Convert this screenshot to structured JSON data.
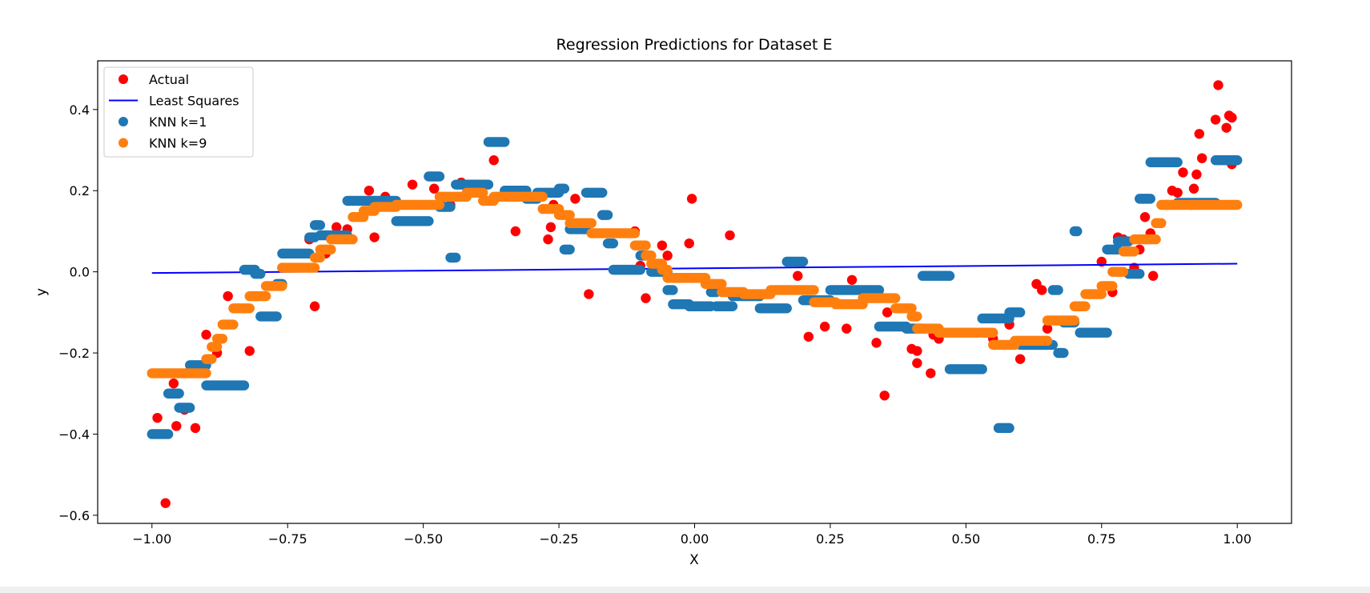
{
  "chart_data": {
    "type": "scatter",
    "title": "Regression Predictions for Dataset E",
    "xlabel": "X",
    "ylabel": "y",
    "xlim": [
      -1.1,
      1.1
    ],
    "ylim": [
      -0.62,
      0.52
    ],
    "xticks": [
      -1.0,
      -0.75,
      -0.5,
      -0.25,
      0.0,
      0.25,
      0.5,
      0.75,
      1.0
    ],
    "xtick_labels": [
      "−1.00",
      "−0.75",
      "−0.50",
      "−0.25",
      "0.00",
      "0.25",
      "0.50",
      "0.75",
      "1.00"
    ],
    "yticks": [
      -0.6,
      -0.4,
      -0.2,
      0.0,
      0.2,
      0.4
    ],
    "ytick_labels": [
      "−0.6",
      "−0.4",
      "−0.2",
      "0.0",
      "0.2",
      "0.4"
    ],
    "grid": false,
    "legend_position": "top-left",
    "series": [
      {
        "name": "Actual",
        "kind": "scatter",
        "color": "#ff0000",
        "points": [
          [
            -0.99,
            -0.36
          ],
          [
            -0.975,
            -0.57
          ],
          [
            -0.96,
            -0.275
          ],
          [
            -0.955,
            -0.38
          ],
          [
            -0.94,
            -0.34
          ],
          [
            -0.93,
            -0.25
          ],
          [
            -0.92,
            -0.385
          ],
          [
            -0.9,
            -0.155
          ],
          [
            -0.88,
            -0.2
          ],
          [
            -0.86,
            -0.06
          ],
          [
            -0.82,
            -0.195
          ],
          [
            -0.76,
            0.01
          ],
          [
            -0.71,
            0.08
          ],
          [
            -0.7,
            -0.085
          ],
          [
            -0.68,
            0.045
          ],
          [
            -0.66,
            0.11
          ],
          [
            -0.64,
            0.105
          ],
          [
            -0.6,
            0.2
          ],
          [
            -0.59,
            0.085
          ],
          [
            -0.57,
            0.185
          ],
          [
            -0.52,
            0.215
          ],
          [
            -0.48,
            0.205
          ],
          [
            -0.47,
            0.17
          ],
          [
            -0.43,
            0.22
          ],
          [
            -0.45,
            0.165
          ],
          [
            -0.37,
            0.275
          ],
          [
            -0.33,
            0.1
          ],
          [
            -0.265,
            0.11
          ],
          [
            -0.26,
            0.165
          ],
          [
            -0.27,
            0.08
          ],
          [
            -0.22,
            0.18
          ],
          [
            -0.195,
            -0.055
          ],
          [
            -0.17,
            0.14
          ],
          [
            -0.11,
            0.1
          ],
          [
            -0.1,
            0.015
          ],
          [
            -0.09,
            -0.065
          ],
          [
            -0.06,
            0.065
          ],
          [
            -0.05,
            0.04
          ],
          [
            -0.01,
            0.07
          ],
          [
            -0.005,
            0.18
          ],
          [
            0.065,
            0.09
          ],
          [
            0.19,
            -0.01
          ],
          [
            0.21,
            -0.16
          ],
          [
            0.24,
            -0.135
          ],
          [
            0.28,
            -0.14
          ],
          [
            0.29,
            -0.02
          ],
          [
            0.335,
            -0.175
          ],
          [
            0.35,
            -0.305
          ],
          [
            0.355,
            -0.1
          ],
          [
            0.4,
            -0.19
          ],
          [
            0.41,
            -0.195
          ],
          [
            0.41,
            -0.225
          ],
          [
            0.435,
            -0.25
          ],
          [
            0.44,
            -0.155
          ],
          [
            0.45,
            -0.165
          ],
          [
            0.55,
            -0.165
          ],
          [
            0.58,
            -0.13
          ],
          [
            0.6,
            -0.215
          ],
          [
            0.63,
            -0.03
          ],
          [
            0.64,
            -0.045
          ],
          [
            0.65,
            -0.14
          ],
          [
            0.75,
            0.025
          ],
          [
            0.77,
            -0.05
          ],
          [
            0.78,
            0.085
          ],
          [
            0.79,
            0.08
          ],
          [
            0.81,
            0.01
          ],
          [
            0.82,
            0.055
          ],
          [
            0.83,
            0.135
          ],
          [
            0.84,
            0.095
          ],
          [
            0.845,
            -0.01
          ],
          [
            0.87,
            0.165
          ],
          [
            0.88,
            0.2
          ],
          [
            0.89,
            0.195
          ],
          [
            0.9,
            0.245
          ],
          [
            0.915,
            0.165
          ],
          [
            0.92,
            0.205
          ],
          [
            0.925,
            0.24
          ],
          [
            0.93,
            0.34
          ],
          [
            0.935,
            0.28
          ],
          [
            0.96,
            0.375
          ],
          [
            0.965,
            0.46
          ],
          [
            0.98,
            0.355
          ],
          [
            0.985,
            0.385
          ],
          [
            0.99,
            0.265
          ],
          [
            0.99,
            0.38
          ]
        ]
      },
      {
        "name": "Least Squares",
        "kind": "line",
        "color": "#0000ff",
        "x": [
          -1.0,
          1.0
        ],
        "y": [
          -0.003,
          0.02
        ]
      },
      {
        "name": "KNN k=1",
        "kind": "scatter",
        "color": "#1f77b4",
        "steps": [
          [
            -1.0,
            -0.97,
            -0.4
          ],
          [
            -0.97,
            -0.95,
            -0.3
          ],
          [
            -0.95,
            -0.93,
            -0.335
          ],
          [
            -0.93,
            -0.9,
            -0.23
          ],
          [
            -0.9,
            -0.83,
            -0.28
          ],
          [
            -0.83,
            -0.81,
            0.005
          ],
          [
            -0.81,
            -0.8,
            -0.005
          ],
          [
            -0.8,
            -0.77,
            -0.11
          ],
          [
            -0.77,
            -0.76,
            -0.03
          ],
          [
            -0.76,
            -0.71,
            0.045
          ],
          [
            -0.71,
            -0.7,
            0.085
          ],
          [
            -0.7,
            -0.69,
            0.115
          ],
          [
            -0.69,
            -0.64,
            0.09
          ],
          [
            -0.64,
            -0.55,
            0.175
          ],
          [
            -0.55,
            -0.49,
            0.125
          ],
          [
            -0.49,
            -0.47,
            0.235
          ],
          [
            -0.47,
            -0.45,
            0.16
          ],
          [
            -0.45,
            -0.44,
            0.035
          ],
          [
            -0.44,
            -0.38,
            0.215
          ],
          [
            -0.38,
            -0.35,
            0.32
          ],
          [
            -0.35,
            -0.31,
            0.2
          ],
          [
            -0.31,
            -0.29,
            0.18
          ],
          [
            -0.29,
            -0.25,
            0.195
          ],
          [
            -0.25,
            -0.24,
            0.205
          ],
          [
            -0.24,
            -0.23,
            0.055
          ],
          [
            -0.23,
            -0.2,
            0.105
          ],
          [
            -0.2,
            -0.17,
            0.195
          ],
          [
            -0.17,
            -0.16,
            0.14
          ],
          [
            -0.16,
            -0.15,
            0.07
          ],
          [
            -0.15,
            -0.1,
            0.005
          ],
          [
            -0.1,
            -0.08,
            0.04
          ],
          [
            -0.08,
            -0.05,
            0.0
          ],
          [
            -0.05,
            -0.04,
            -0.045
          ],
          [
            -0.04,
            -0.01,
            -0.08
          ],
          [
            -0.01,
            0.03,
            -0.085
          ],
          [
            0.03,
            0.04,
            -0.05
          ],
          [
            0.04,
            0.07,
            -0.085
          ],
          [
            0.07,
            0.12,
            -0.06
          ],
          [
            0.12,
            0.17,
            -0.09
          ],
          [
            0.17,
            0.2,
            0.025
          ],
          [
            0.2,
            0.25,
            -0.07
          ],
          [
            0.25,
            0.34,
            -0.045
          ],
          [
            0.34,
            0.39,
            -0.135
          ],
          [
            0.39,
            0.42,
            -0.14
          ],
          [
            0.42,
            0.47,
            -0.01
          ],
          [
            0.47,
            0.53,
            -0.24
          ],
          [
            0.53,
            0.58,
            -0.115
          ],
          [
            0.56,
            0.58,
            -0.385
          ],
          [
            0.58,
            0.6,
            -0.1
          ],
          [
            0.6,
            0.66,
            -0.18
          ],
          [
            0.66,
            0.67,
            -0.045
          ],
          [
            0.67,
            0.68,
            -0.2
          ],
          [
            0.68,
            0.7,
            -0.125
          ],
          [
            0.7,
            0.705,
            0.1
          ],
          [
            0.71,
            0.76,
            -0.15
          ],
          [
            0.76,
            0.78,
            0.055
          ],
          [
            0.78,
            0.8,
            0.075
          ],
          [
            0.8,
            0.82,
            -0.005
          ],
          [
            0.82,
            0.84,
            0.18
          ],
          [
            0.84,
            0.89,
            0.27
          ],
          [
            0.89,
            0.96,
            0.17
          ],
          [
            0.96,
            1.0,
            0.275
          ]
        ]
      },
      {
        "name": "KNN k=9",
        "kind": "scatter",
        "color": "#ff7f0e",
        "steps": [
          [
            -1.0,
            -0.9,
            -0.25
          ],
          [
            -0.9,
            -0.89,
            -0.215
          ],
          [
            -0.89,
            -0.88,
            -0.185
          ],
          [
            -0.88,
            -0.87,
            -0.165
          ],
          [
            -0.87,
            -0.85,
            -0.13
          ],
          [
            -0.85,
            -0.82,
            -0.09
          ],
          [
            -0.82,
            -0.79,
            -0.06
          ],
          [
            -0.79,
            -0.76,
            -0.035
          ],
          [
            -0.76,
            -0.7,
            0.01
          ],
          [
            -0.7,
            -0.69,
            0.035
          ],
          [
            -0.69,
            -0.67,
            0.055
          ],
          [
            -0.67,
            -0.63,
            0.08
          ],
          [
            -0.63,
            -0.61,
            0.135
          ],
          [
            -0.61,
            -0.59,
            0.15
          ],
          [
            -0.59,
            -0.55,
            0.16
          ],
          [
            -0.55,
            -0.47,
            0.165
          ],
          [
            -0.47,
            -0.42,
            0.185
          ],
          [
            -0.42,
            -0.39,
            0.195
          ],
          [
            -0.39,
            -0.37,
            0.175
          ],
          [
            -0.37,
            -0.28,
            0.185
          ],
          [
            -0.28,
            -0.25,
            0.155
          ],
          [
            -0.25,
            -0.23,
            0.14
          ],
          [
            -0.23,
            -0.19,
            0.12
          ],
          [
            -0.19,
            -0.11,
            0.095
          ],
          [
            -0.11,
            -0.09,
            0.065
          ],
          [
            -0.09,
            -0.08,
            0.04
          ],
          [
            -0.08,
            -0.06,
            0.02
          ],
          [
            -0.06,
            -0.05,
            0.005
          ],
          [
            -0.05,
            0.02,
            -0.015
          ],
          [
            0.02,
            0.05,
            -0.03
          ],
          [
            0.05,
            0.09,
            -0.05
          ],
          [
            0.09,
            0.14,
            -0.055
          ],
          [
            0.14,
            0.22,
            -0.045
          ],
          [
            0.22,
            0.26,
            -0.075
          ],
          [
            0.26,
            0.31,
            -0.08
          ],
          [
            0.31,
            0.37,
            -0.065
          ],
          [
            0.37,
            0.4,
            -0.09
          ],
          [
            0.4,
            0.41,
            -0.11
          ],
          [
            0.41,
            0.45,
            -0.14
          ],
          [
            0.45,
            0.55,
            -0.15
          ],
          [
            0.55,
            0.59,
            -0.18
          ],
          [
            0.59,
            0.65,
            -0.17
          ],
          [
            0.65,
            0.7,
            -0.12
          ],
          [
            0.7,
            0.72,
            -0.085
          ],
          [
            0.72,
            0.75,
            -0.055
          ],
          [
            0.75,
            0.77,
            -0.035
          ],
          [
            0.77,
            0.79,
            0.0
          ],
          [
            0.79,
            0.81,
            0.05
          ],
          [
            0.81,
            0.85,
            0.08
          ],
          [
            0.85,
            0.86,
            0.12
          ],
          [
            0.86,
            1.0,
            0.165
          ]
        ]
      }
    ]
  }
}
